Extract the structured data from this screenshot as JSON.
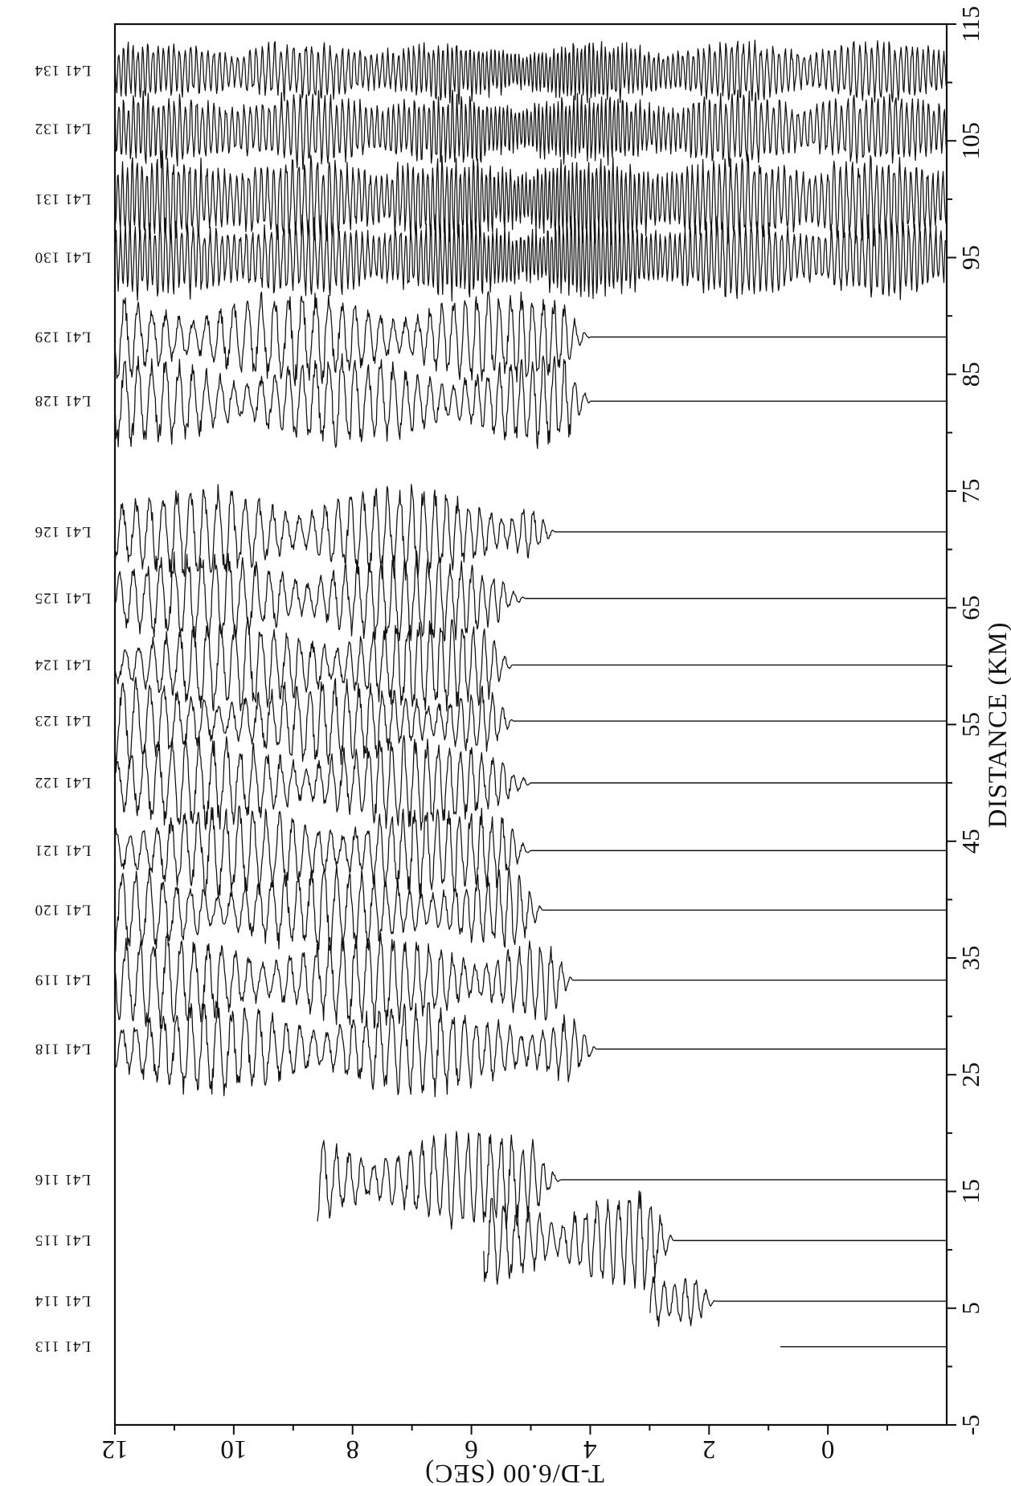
{
  "chart_data": {
    "type": "seismic record section",
    "xlabel": "DISTANCE (KM)",
    "ylabel": "T-D/6.00 (SEC)",
    "xlim": [
      -5,
      115
    ],
    "ylim": [
      -2,
      12
    ],
    "x_ticks": [
      -5,
      5,
      15,
      25,
      35,
      45,
      55,
      65,
      75,
      85,
      95,
      105,
      115
    ],
    "x_tick_labels": [
      "-5",
      "5",
      "15",
      "25",
      "35",
      "45",
      "55",
      "65",
      "75",
      "85",
      "95",
      "105",
      "115"
    ],
    "y_ticks": [
      0,
      2,
      4,
      6,
      8,
      10,
      12
    ],
    "y_tick_labels": [
      "0",
      "2",
      "4",
      "6",
      "8",
      "10",
      "12"
    ],
    "traces": [
      {
        "name": "L41 113",
        "distance_km": 1.7,
        "onset_sec": 0.8,
        "record_end_sec": 0.8,
        "amplitude": 0.9,
        "style": "weak"
      },
      {
        "name": "L41 114",
        "distance_km": 5.6,
        "onset_sec": 1.9,
        "record_end_sec": 3.0,
        "amplitude": 1.5,
        "style": "normal"
      },
      {
        "name": "L41 115",
        "distance_km": 10.8,
        "onset_sec": 2.6,
        "record_end_sec": 5.8,
        "amplitude": 1.5,
        "style": "normal"
      },
      {
        "name": "L41 116",
        "distance_km": 16.0,
        "onset_sec": 4.5,
        "record_end_sec": 8.6,
        "amplitude": 1.4,
        "style": "normal"
      },
      {
        "name": "L41 118",
        "distance_km": 27.2,
        "onset_sec": 3.9,
        "record_end_sec": 12.1,
        "amplitude": 1.3,
        "style": "normal"
      },
      {
        "name": "L41 119",
        "distance_km": 33.1,
        "onset_sec": 4.3,
        "record_end_sec": 12.1,
        "amplitude": 1.3,
        "style": "normal"
      },
      {
        "name": "L41 120",
        "distance_km": 39.1,
        "onset_sec": 4.8,
        "record_end_sec": 12.1,
        "amplitude": 1.2,
        "style": "normal"
      },
      {
        "name": "L41 121",
        "distance_km": 44.2,
        "onset_sec": 5.0,
        "record_end_sec": 12.1,
        "amplitude": 1.3,
        "style": "normal"
      },
      {
        "name": "L41 122",
        "distance_km": 50.0,
        "onset_sec": 5.0,
        "record_end_sec": 12.1,
        "amplitude": 1.3,
        "style": "normal"
      },
      {
        "name": "L41 123",
        "distance_km": 55.3,
        "onset_sec": 5.3,
        "record_end_sec": 12.1,
        "amplitude": 1.2,
        "style": "normal"
      },
      {
        "name": "L41 124",
        "distance_km": 60.1,
        "onset_sec": 5.3,
        "record_end_sec": 12.1,
        "amplitude": 1.3,
        "style": "normal"
      },
      {
        "name": "L41 125",
        "distance_km": 65.8,
        "onset_sec": 5.1,
        "record_end_sec": 12.1,
        "amplitude": 1.3,
        "style": "normal"
      },
      {
        "name": "L41 126",
        "distance_km": 71.5,
        "onset_sec": 4.6,
        "record_end_sec": 12.1,
        "amplitude": 1.3,
        "style": "normal"
      },
      {
        "name": "L41 128",
        "distance_km": 82.7,
        "onset_sec": 4.0,
        "record_end_sec": 12.1,
        "amplitude": 1.3,
        "style": "normal"
      },
      {
        "name": "L41 129",
        "distance_km": 88.2,
        "onset_sec": 4.0,
        "record_end_sec": 12.1,
        "amplitude": 1.3,
        "style": "normal"
      },
      {
        "name": "L41 130",
        "distance_km": 95.0,
        "onset_sec": -2.0,
        "record_end_sec": 12.1,
        "amplitude": 1.2,
        "style": "noisy"
      },
      {
        "name": "L41 131",
        "distance_km": 100.0,
        "onset_sec": -2.0,
        "record_end_sec": 12.1,
        "amplitude": 1.3,
        "style": "noisy"
      },
      {
        "name": "L41 132",
        "distance_km": 106.0,
        "onset_sec": -2.0,
        "record_end_sec": 12.1,
        "amplitude": 1.1,
        "style": "noisy"
      },
      {
        "name": "L41 134",
        "distance_km": 111.0,
        "onset_sec": -2.0,
        "record_end_sec": 12.1,
        "amplitude": 0.9,
        "style": "noisy"
      }
    ]
  }
}
